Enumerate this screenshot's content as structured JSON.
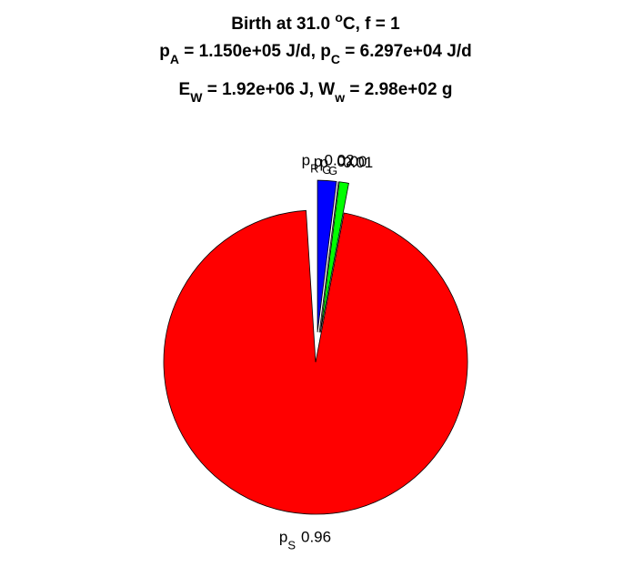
{
  "chart_data": {
    "type": "pie",
    "title": [
      [
        {
          "text": "Birth at 31.0 "
        },
        {
          "text": "o",
          "style": "sup"
        },
        {
          "text": "C, f = 1"
        }
      ],
      [
        {
          "text": "p"
        },
        {
          "text": "A",
          "style": "sub"
        },
        {
          "text": " = 1.150e+05 J/d, p"
        },
        {
          "text": "C",
          "style": "sub"
        },
        {
          "text": " = 6.297e+04 J/d"
        }
      ],
      [
        {
          "text": "E"
        },
        {
          "text": "W",
          "style": "sub"
        },
        {
          "text": " = 1.92e+06 J, W"
        },
        {
          "text": "w",
          "style": "sub"
        },
        {
          "text": " = 2.98e+02 g"
        }
      ]
    ],
    "categories": [
      [
        {
          "text": "p"
        },
        {
          "text": "R",
          "style": "sub"
        }
      ],
      [
        {
          "text": "p"
        },
        {
          "text": "G",
          "style": "sub"
        }
      ],
      [
        {
          "text": "p"
        },
        {
          "text": "G",
          "style": "sub"
        }
      ],
      [
        {
          "text": "p"
        },
        {
          "text": "S",
          "style": "sub"
        }
      ]
    ],
    "values": [
      0.02,
      0.0,
      0.01,
      0.96
    ],
    "value_labels": [
      "0.02",
      "0.00",
      "0.01",
      "0.96"
    ],
    "colors": [
      "#0000ff",
      "#ff00ff",
      "#00ff00",
      "#ff0000"
    ],
    "explode": [
      true,
      true,
      true,
      false
    ]
  }
}
